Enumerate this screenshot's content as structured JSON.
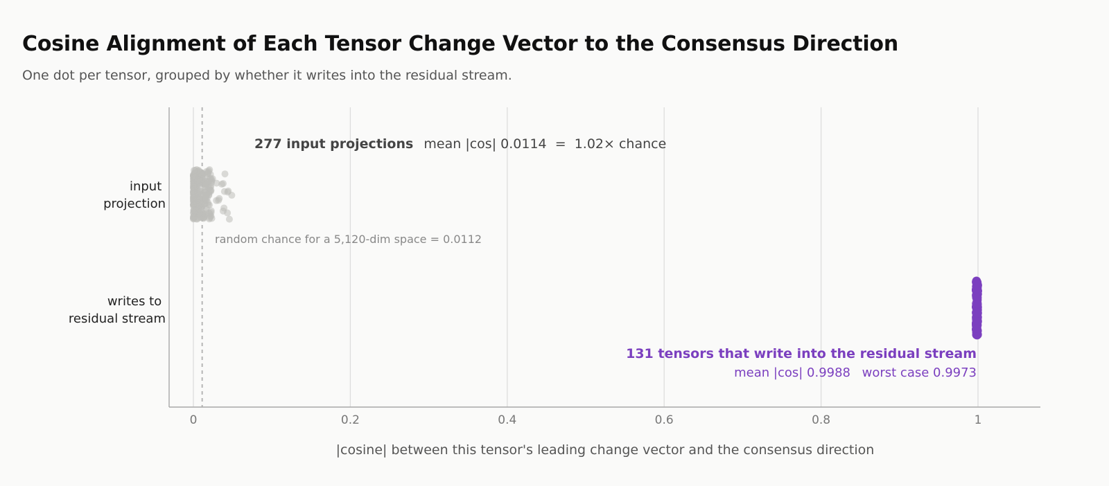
{
  "chart_data": {
    "type": "scatter",
    "title": "Cosine Alignment of Each Tensor Change Vector to the Consensus Direction",
    "subtitle": "One dot per tensor, grouped by whether it writes into the residual stream.",
    "xlabel": "|cosine| between this tensor's leading change vector and the consensus direction",
    "xlim": [
      -0.03,
      1.08
    ],
    "xticks": [
      0,
      0.2,
      0.4,
      0.6,
      0.8,
      1
    ],
    "xtick_labels": [
      "0",
      "0.2",
      "0.4",
      "0.6",
      "0.8",
      "1"
    ],
    "grid": "vertical",
    "categories": [
      {
        "key": "input",
        "lines": [
          "input",
          "projection"
        ]
      },
      {
        "key": "residual",
        "lines": [
          "writes to",
          "residual stream"
        ]
      }
    ],
    "reference_line": {
      "x": 0.0112,
      "label": "random chance for a 5,120-dim space = 0.0112"
    },
    "series": [
      {
        "category": "input",
        "count": 277,
        "mean_abs_cos": 0.0114,
        "x_range": [
          0.0,
          0.05
        ],
        "color": "#bdbdb9"
      },
      {
        "category": "residual",
        "count": 131,
        "mean_abs_cos": 0.9988,
        "worst_case": 0.9973,
        "color": "#7b3fbf"
      }
    ],
    "annotations": {
      "input_bold": "277 input projections",
      "input_rest": "mean |cos| 0.0114  =  1.02× chance",
      "residual_bold": "131 tensors that write into the residual stream",
      "residual_mean": "mean |cos| 0.9988",
      "residual_worst": "worst case 0.9973"
    },
    "colors": {
      "accent": "#7b3fbf",
      "muted_dot": "#bdbdb9",
      "grid": "#dddddd",
      "ref_line": "#b5b5b5"
    }
  }
}
